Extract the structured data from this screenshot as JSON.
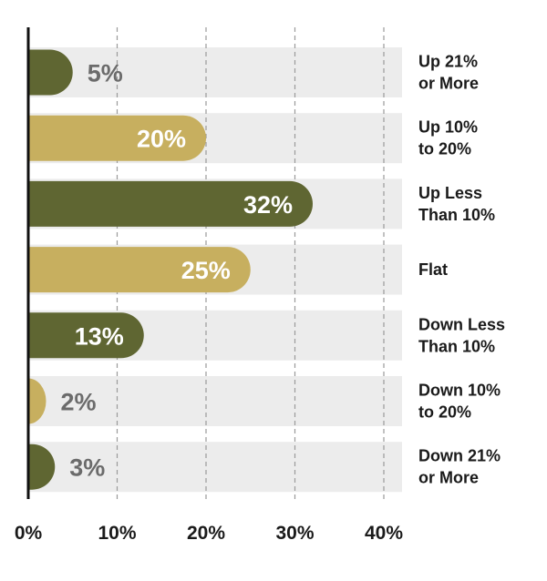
{
  "chart_data": {
    "type": "bar",
    "orientation": "horizontal",
    "categories": [
      [
        "Up 21%",
        "or More"
      ],
      [
        "Up 10%",
        "to 20%"
      ],
      [
        "Up Less",
        "Than 10%"
      ],
      [
        "Flat"
      ],
      [
        "Down Less",
        "Than 10%"
      ],
      [
        "Down 10%",
        "to 20%"
      ],
      [
        "Down 21%",
        "or More"
      ]
    ],
    "values": [
      5,
      20,
      32,
      25,
      13,
      2,
      3
    ],
    "value_labels": [
      "5%",
      "20%",
      "32%",
      "25%",
      "13%",
      "2%",
      "3%"
    ],
    "bar_colors": [
      "#5f6632",
      "#c7af5f",
      "#5f6632",
      "#c7af5f",
      "#5f6632",
      "#c7af5f",
      "#5f6632"
    ],
    "track_color": "#ececec",
    "label_color_inside": "#ffffff",
    "label_color_outside": "#6b6b6b",
    "x_ticks": [
      0,
      10,
      20,
      30,
      40
    ],
    "x_tick_labels": [
      "0%",
      "10%",
      "20%",
      "30%",
      "40%"
    ],
    "xlim": [
      0,
      42
    ],
    "grid": "vertical-dashed",
    "title": "",
    "xlabel": "",
    "ylabel": ""
  }
}
